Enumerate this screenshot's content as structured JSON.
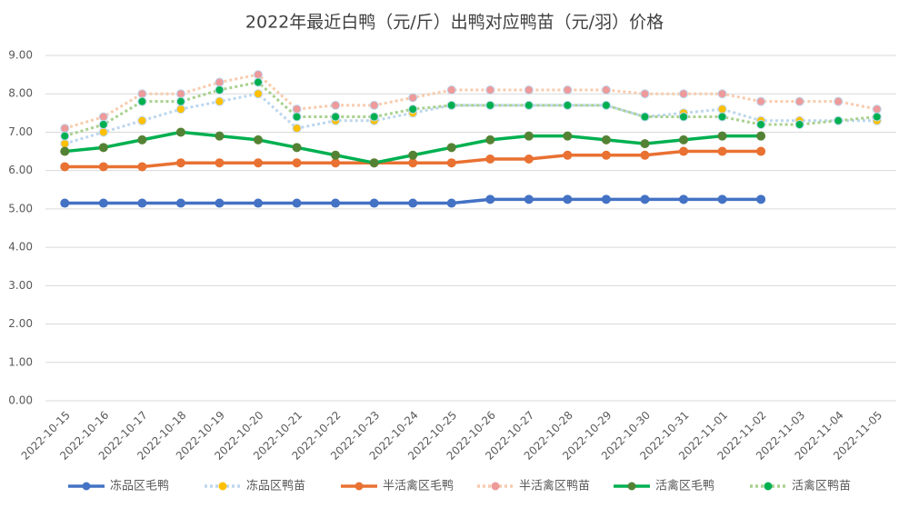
{
  "chart_data": {
    "type": "line",
    "title": "2022年最近白鸭（元/斤）出鸭对应鸭苗（元/羽）价格",
    "categories": [
      "2022-10-15",
      "2022-10-16",
      "2022-10-17",
      "2022-10-18",
      "2022-10-19",
      "2022-10-20",
      "2022-10-21",
      "2022-10-22",
      "2022-10-23",
      "2022-10-24",
      "2022-10-25",
      "2022-10-26",
      "2022-10-27",
      "2022-10-28",
      "2022-10-29",
      "2022-10-30",
      "2022-10-31",
      "2022-11-01",
      "2022-11-02",
      "2022-11-03",
      "2022-11-04",
      "2022-11-05"
    ],
    "series": [
      {
        "name": "冻品区毛鸭",
        "color": "#4472c4",
        "marker_color": "#4472c4",
        "dashed": false,
        "values": [
          5.15,
          5.15,
          5.15,
          5.15,
          5.15,
          5.15,
          5.15,
          5.15,
          5.15,
          5.15,
          5.15,
          5.25,
          5.25,
          5.25,
          5.25,
          5.25,
          5.25,
          5.25,
          5.25,
          null,
          null,
          null
        ]
      },
      {
        "name": "冻品区鸭苗",
        "color": "#bdd7ee",
        "marker_color": "#ffc000",
        "dashed": true,
        "values": [
          6.7,
          7.0,
          7.3,
          7.6,
          7.8,
          8.0,
          7.1,
          7.3,
          7.3,
          7.5,
          7.7,
          7.7,
          7.7,
          7.7,
          7.7,
          7.4,
          7.5,
          7.6,
          7.3,
          7.3,
          7.3,
          7.3
        ]
      },
      {
        "name": "半活禽区毛鸭",
        "color": "#e97132",
        "marker_color": "#e97132",
        "dashed": false,
        "values": [
          6.1,
          6.1,
          6.1,
          6.2,
          6.2,
          6.2,
          6.2,
          6.2,
          6.2,
          6.2,
          6.2,
          6.3,
          6.3,
          6.4,
          6.4,
          6.4,
          6.5,
          6.5,
          6.5,
          null,
          null,
          null
        ]
      },
      {
        "name": "半活禽区鸭苗",
        "color": "#f8cbad",
        "marker_color": "#ee9a9a",
        "dashed": true,
        "values": [
          7.1,
          7.4,
          8.0,
          8.0,
          8.3,
          8.5,
          7.6,
          7.7,
          7.7,
          7.9,
          8.1,
          8.1,
          8.1,
          8.1,
          8.1,
          8.0,
          8.0,
          8.0,
          7.8,
          7.8,
          7.8,
          7.6
        ]
      },
      {
        "name": "活禽区毛鸭",
        "color": "#00b050",
        "marker_color": "#548235",
        "dashed": false,
        "values": [
          6.5,
          6.6,
          6.8,
          7.0,
          6.9,
          6.8,
          6.6,
          6.4,
          6.2,
          6.4,
          6.6,
          6.8,
          6.9,
          6.9,
          6.8,
          6.7,
          6.8,
          6.9,
          6.9,
          null,
          null,
          null
        ]
      },
      {
        "name": "活禽区鸭苗",
        "color": "#a9d18e",
        "marker_color": "#00b050",
        "dashed": true,
        "values": [
          6.9,
          7.2,
          7.8,
          7.8,
          8.1,
          8.3,
          7.4,
          7.4,
          7.4,
          7.6,
          7.7,
          7.7,
          7.7,
          7.7,
          7.7,
          7.4,
          7.4,
          7.4,
          7.2,
          7.2,
          7.3,
          7.4
        ]
      }
    ],
    "ylim": [
      0,
      9
    ],
    "yticks": [
      {
        "value": 0,
        "label": "0.00"
      },
      {
        "value": 1,
        "label": "1.00"
      },
      {
        "value": 2,
        "label": "2.00"
      },
      {
        "value": 3,
        "label": "3.00"
      },
      {
        "value": 4,
        "label": "4.00"
      },
      {
        "value": 5,
        "label": "5.00"
      },
      {
        "value": 6,
        "label": "6.00"
      },
      {
        "value": 7,
        "label": "7.00"
      },
      {
        "value": 8,
        "label": "8.00"
      },
      {
        "value": 9,
        "label": "9.00"
      }
    ],
    "grid": true,
    "legend": "bottom"
  }
}
